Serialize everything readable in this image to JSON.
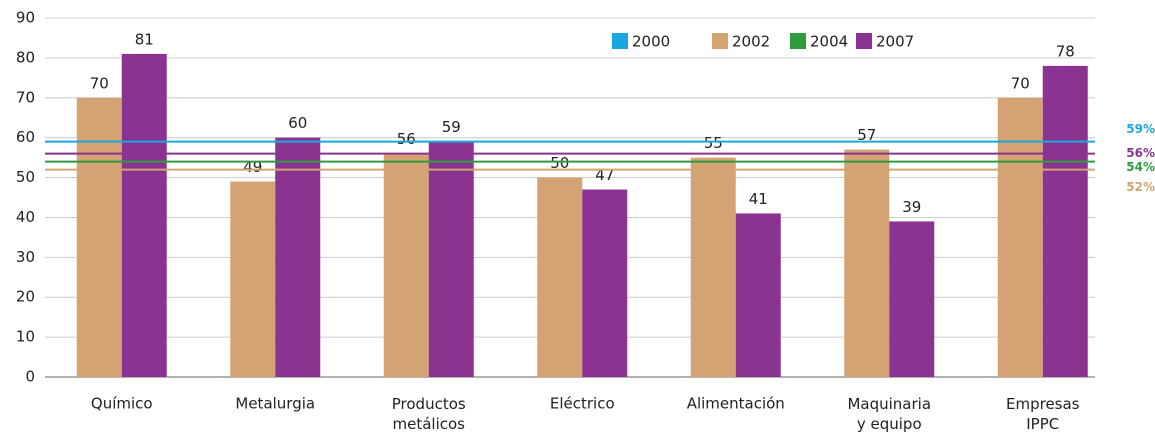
{
  "chart_data": {
    "type": "bar",
    "categories": [
      "Químico",
      "Metalurgia",
      "Productos metálicos",
      "Eléctrico",
      "Alimentación",
      "Maquinaria y equipo",
      "Empresas IPPC"
    ],
    "series": [
      {
        "name": "2000",
        "color": "#1aa7e0",
        "line_value": 59,
        "line_label": "59%"
      },
      {
        "name": "2002",
        "color": "#d4a373",
        "values": [
          70,
          49,
          56,
          50,
          55,
          57,
          70
        ],
        "line_value": 52,
        "line_label": "52%"
      },
      {
        "name": "2004",
        "color": "#2e9c3e",
        "line_value": 54,
        "line_label": "54%"
      },
      {
        "name": "2007",
        "color": "#8b3390",
        "values": [
          81,
          60,
          59,
          47,
          41,
          39,
          78
        ],
        "line_value": 56,
        "line_label": "56%"
      }
    ],
    "ylim": [
      0,
      90
    ],
    "yticks": [
      0,
      10,
      20,
      30,
      40,
      50,
      60,
      70,
      80,
      90
    ],
    "grid": true
  }
}
